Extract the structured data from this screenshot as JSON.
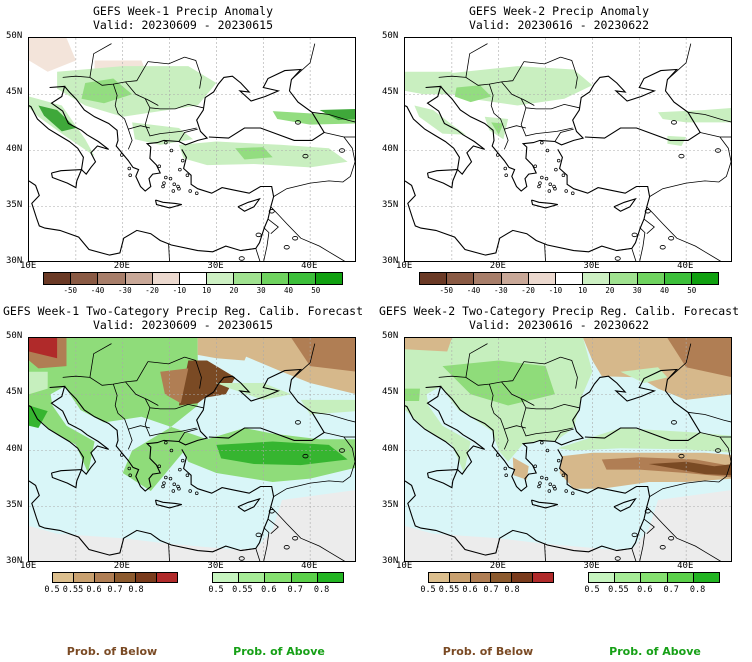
{
  "panels": [
    {
      "title": "GEFS Week-1 Precip Anomaly",
      "valid": "Valid: 20230609 - 20230615"
    },
    {
      "title": "GEFS Week-2 Precip Anomaly",
      "valid": "Valid: 20230616 - 20230622"
    },
    {
      "title": "GEFS Week-1 Two-Category Precip Reg. Calib. Forecast",
      "valid": "Valid: 20230609 - 20230615"
    },
    {
      "title": "GEFS Week-2 Two-Category Precip Reg. Calib. Forecast",
      "valid": "Valid: 20230616 - 20230622"
    }
  ],
  "lat_labels": [
    "50N",
    "45N",
    "40N",
    "35N",
    "30N"
  ],
  "lon_labels": [
    "10E",
    "20E",
    "30E",
    "40E"
  ],
  "anomaly_colorbar": {
    "labels": [
      "-50",
      "-40",
      "-30",
      "-20",
      "-10",
      "10",
      "20",
      "30",
      "40",
      "50"
    ],
    "colors": [
      "#6b3a26",
      "#8a5a44",
      "#a87e6a",
      "#c9a898",
      "#ecd9cf",
      "#ffffff",
      "#cdf0c3",
      "#a0e290",
      "#6fd35f",
      "#3cbf3a",
      "#10a010"
    ]
  },
  "prob_below": {
    "labels": [
      "0.5",
      "0.55",
      "0.6",
      "0.7",
      "0.8"
    ],
    "colors": [
      "#dcbf8e",
      "#c9a170",
      "#b07e54",
      "#8c5a2e",
      "#7a3b1c",
      "#b02a2a"
    ],
    "caption": "Prob. of Below"
  },
  "prob_above": {
    "labels": [
      "0.5",
      "0.55",
      "0.6",
      "0.7",
      "0.8"
    ],
    "colors": [
      "#c7f5c0",
      "#a6ec97",
      "#85e070",
      "#5bd04a",
      "#22b422"
    ],
    "caption": "Prob. of Above"
  },
  "map_colors": {
    "sea_prob": "#d9f6f8",
    "land_outside": "#ececec",
    "light_green": "#c6efbe",
    "green": "#8fdc7a",
    "dark_green": "#36b530",
    "brown_light": "#d6b88b",
    "brown": "#b07e54",
    "brown_dark": "#7a4a24",
    "red": "#b02a2a",
    "anom_light_green": "#c9efc0",
    "anom_green": "#93dd80",
    "anom_dark_green": "#3fa83a",
    "anom_tan": "#f3e4da"
  }
}
